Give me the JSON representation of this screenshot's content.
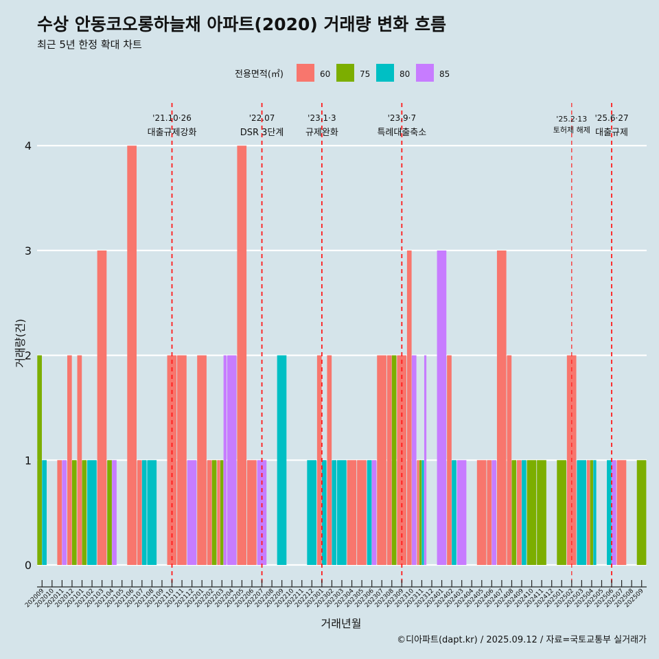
{
  "chart_data": {
    "type": "bar",
    "title": "수상 안동코오롱하늘채 아파트(2020) 거래량 변화 흐름",
    "subtitle": "최근 5년 한정 확대 차트",
    "xlabel": "거래년월",
    "ylabel": "거래량(건)",
    "ylim": [
      0,
      4
    ],
    "y_ticks": [
      "0",
      "1",
      "2",
      "3",
      "4"
    ],
    "grid": "horizontal",
    "legend_title": "전용면적(㎡)",
    "legend_position": "top",
    "legend": [
      {
        "name": "60",
        "color": "#f8766d"
      },
      {
        "name": "75",
        "color": "#7cae00"
      },
      {
        "name": "80",
        "color": "#00bfc4"
      },
      {
        "name": "85",
        "color": "#c77cff"
      }
    ],
    "categories": [
      "202009",
      "202010",
      "202011",
      "202012",
      "202101",
      "202102",
      "202103",
      "202104",
      "202105",
      "202106",
      "202107",
      "202108",
      "202109",
      "202110",
      "202111",
      "202112",
      "202201",
      "202202",
      "202203",
      "202204",
      "202205",
      "202206",
      "202207",
      "202208",
      "202209",
      "202210",
      "202211",
      "202212",
      "202301",
      "202302",
      "202303",
      "202304",
      "202305",
      "202306",
      "202307",
      "202308",
      "202309",
      "202310",
      "202311",
      "202312",
      "202401",
      "202402",
      "202403",
      "202404",
      "202405",
      "202406",
      "202407",
      "202408",
      "202409",
      "202410",
      "202411",
      "202412",
      "202501",
      "202502",
      "202503",
      "202504",
      "202505",
      "202506",
      "202507",
      "202508",
      "202509"
    ],
    "series": [
      {
        "name": "60",
        "values": [
          0,
          0,
          1,
          2,
          2,
          0,
          3,
          0,
          0,
          4,
          1,
          0,
          0,
          2,
          2,
          0,
          2,
          1,
          1,
          0,
          4,
          1,
          0,
          0,
          0,
          0,
          0,
          0,
          2,
          2,
          0,
          1,
          1,
          0,
          2,
          2,
          2,
          3,
          1,
          0,
          0,
          2,
          0,
          0,
          1,
          1,
          3,
          2,
          1,
          0,
          0,
          0,
          0,
          2,
          0,
          1,
          0,
          0,
          1,
          0,
          0
        ]
      },
      {
        "name": "75",
        "values": [
          2,
          0,
          0,
          1,
          1,
          0,
          0,
          1,
          0,
          0,
          0,
          0,
          0,
          0,
          0,
          0,
          0,
          1,
          1,
          0,
          0,
          0,
          0,
          0,
          0,
          0,
          0,
          0,
          0,
          0,
          0,
          0,
          0,
          0,
          0,
          2,
          0,
          0,
          1,
          0,
          0,
          0,
          0,
          0,
          0,
          0,
          0,
          1,
          0,
          1,
          1,
          0,
          1,
          0,
          0,
          1,
          0,
          0,
          0,
          0,
          1
        ]
      },
      {
        "name": "80",
        "values": [
          1,
          0,
          0,
          0,
          0,
          1,
          0,
          0,
          0,
          0,
          1,
          1,
          0,
          0,
          0,
          0,
          0,
          0,
          0,
          0,
          0,
          0,
          0,
          0,
          2,
          0,
          0,
          1,
          1,
          1,
          1,
          0,
          0,
          1,
          0,
          0,
          0,
          0,
          1,
          0,
          0,
          1,
          0,
          0,
          0,
          0,
          0,
          0,
          1,
          0,
          0,
          0,
          0,
          0,
          1,
          1,
          0,
          1,
          0,
          0,
          0
        ]
      },
      {
        "name": "85",
        "values": [
          0,
          0,
          1,
          0,
          0,
          0,
          0,
          1,
          0,
          0,
          0,
          0,
          0,
          0,
          0,
          1,
          0,
          0,
          2,
          2,
          0,
          0,
          1,
          0,
          0,
          0,
          0,
          0,
          0,
          0,
          0,
          0,
          0,
          1,
          0,
          0,
          0,
          2,
          2,
          0,
          3,
          0,
          1,
          0,
          0,
          1,
          0,
          0,
          0,
          0,
          0,
          0,
          0,
          0,
          0,
          0,
          0,
          1,
          0,
          0,
          0
        ]
      }
    ],
    "annotations": [
      {
        "month": "202110",
        "date": "'21.10·26",
        "label": "대출규제강화"
      },
      {
        "month": "202207",
        "date": "'22.07",
        "label": "DSR 3단계"
      },
      {
        "month": "202301",
        "date": "'23.1·3",
        "label": "규제완화"
      },
      {
        "month": "202309",
        "date": "'23.9·7",
        "label": "특례대출축소"
      },
      {
        "month": "202502",
        "date": "'25.2·13",
        "label": "토허제 해제"
      },
      {
        "month": "202506",
        "date": "'25.6·27",
        "label": "대출규제"
      }
    ]
  },
  "caption": "©디아파트(dapt.kr) / 2025.09.12 / 자료=국토교통부 실거래가"
}
